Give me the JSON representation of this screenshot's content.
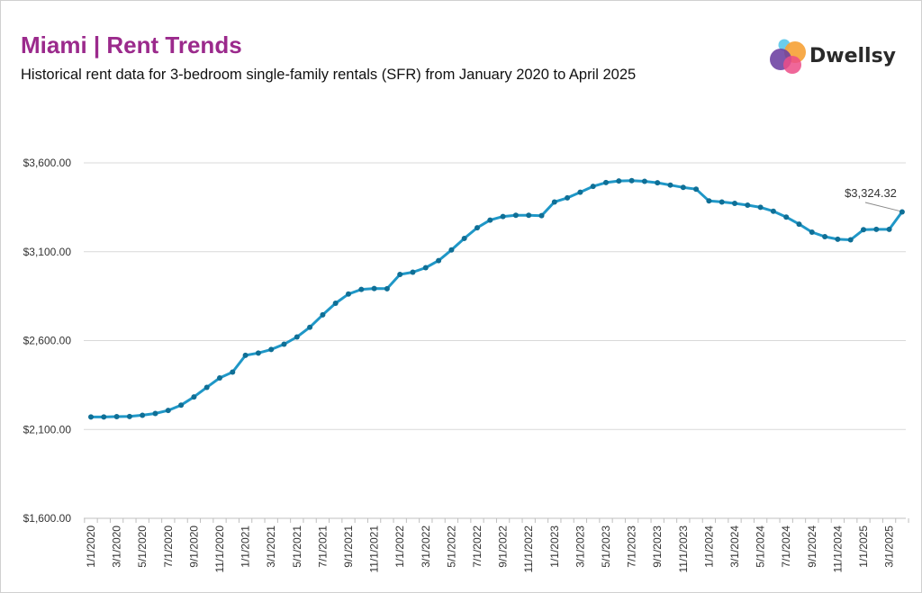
{
  "header": {
    "title": "Miami | Rent Trends",
    "subtitle": "Historical rent data for 3-bedroom single-family rentals (SFR) from January 2020 to April 2025"
  },
  "logo": {
    "text": "Dwellsy",
    "icon": "overlapping-circles-logo"
  },
  "colors": {
    "title": "#9b2a8c",
    "line": "#1f97c7",
    "marker": "#0f6f96",
    "grid": "#d9d9d9"
  },
  "chart_data": {
    "type": "line",
    "title": "Miami | Rent Trends",
    "ylim": [
      1600,
      3600
    ],
    "yticks": [
      1600,
      2100,
      2600,
      3100,
      3600
    ],
    "ytick_labels": [
      "$1,600.00",
      "$2,100.00",
      "$2,600.00",
      "$3,100.00",
      "$3,600.00"
    ],
    "xtick_labels": [
      "1/1/2020",
      "3/1/2020",
      "5/1/2020",
      "7/1/2020",
      "9/1/2020",
      "11/1/2020",
      "1/1/2021",
      "3/1/2021",
      "5/1/2021",
      "7/1/2021",
      "9/1/2021",
      "11/1/2021",
      "1/1/2022",
      "3/1/2022",
      "5/1/2022",
      "7/1/2022",
      "9/1/2022",
      "11/1/2022",
      "1/1/2023",
      "3/1/2023",
      "5/1/2023",
      "7/1/2023",
      "9/1/2023",
      "11/1/2023",
      "1/1/2024",
      "3/1/2024",
      "5/1/2024",
      "7/1/2024",
      "9/1/2024",
      "11/1/2024",
      "1/1/2025",
      "3/1/2025"
    ],
    "grid": true,
    "legend": "none",
    "annotation": {
      "label": "$3,324.32",
      "date": "4/1/2025",
      "value": 3324.32
    },
    "series": [
      {
        "x": [
          "1/1/2020",
          "2/1/2020",
          "3/1/2020",
          "4/1/2020",
          "5/1/2020",
          "6/1/2020",
          "7/1/2020",
          "8/1/2020",
          "9/1/2020",
          "10/1/2020",
          "11/1/2020",
          "12/1/2020",
          "1/1/2021",
          "2/1/2021",
          "3/1/2021",
          "4/1/2021",
          "5/1/2021",
          "6/1/2021",
          "7/1/2021",
          "8/1/2021",
          "9/1/2021",
          "10/1/2021",
          "11/1/2021",
          "12/1/2021",
          "1/1/2022",
          "2/1/2022",
          "3/1/2022",
          "4/1/2022",
          "5/1/2022",
          "6/1/2022",
          "7/1/2022",
          "8/1/2022",
          "9/1/2022",
          "10/1/2022",
          "11/1/2022",
          "12/1/2022",
          "1/1/2023",
          "2/1/2023",
          "3/1/2023",
          "4/1/2023",
          "5/1/2023",
          "6/1/2023",
          "7/1/2023",
          "8/1/2023",
          "9/1/2023",
          "10/1/2023",
          "11/1/2023",
          "12/1/2023",
          "1/1/2024",
          "2/1/2024",
          "3/1/2024",
          "4/1/2024",
          "5/1/2024",
          "6/1/2024",
          "7/1/2024",
          "8/1/2024",
          "9/1/2024",
          "10/1/2024",
          "11/1/2024",
          "12/1/2024",
          "1/1/2025",
          "2/1/2025",
          "3/1/2025",
          "4/1/2025"
        ],
        "values": [
          2170,
          2170,
          2172,
          2173,
          2180,
          2190,
          2207,
          2237,
          2283,
          2337,
          2390,
          2423,
          2517,
          2530,
          2550,
          2580,
          2620,
          2675,
          2745,
          2810,
          2862,
          2888,
          2893,
          2892,
          2972,
          2985,
          3010,
          3050,
          3110,
          3175,
          3235,
          3278,
          3298,
          3305,
          3305,
          3303,
          3380,
          3403,
          3435,
          3468,
          3489,
          3498,
          3500,
          3496,
          3488,
          3475,
          3462,
          3452,
          3386,
          3380,
          3372,
          3362,
          3350,
          3328,
          3295,
          3255,
          3210,
          3185,
          3170,
          3167,
          3224,
          3226,
          3226,
          3324.32
        ]
      }
    ]
  }
}
